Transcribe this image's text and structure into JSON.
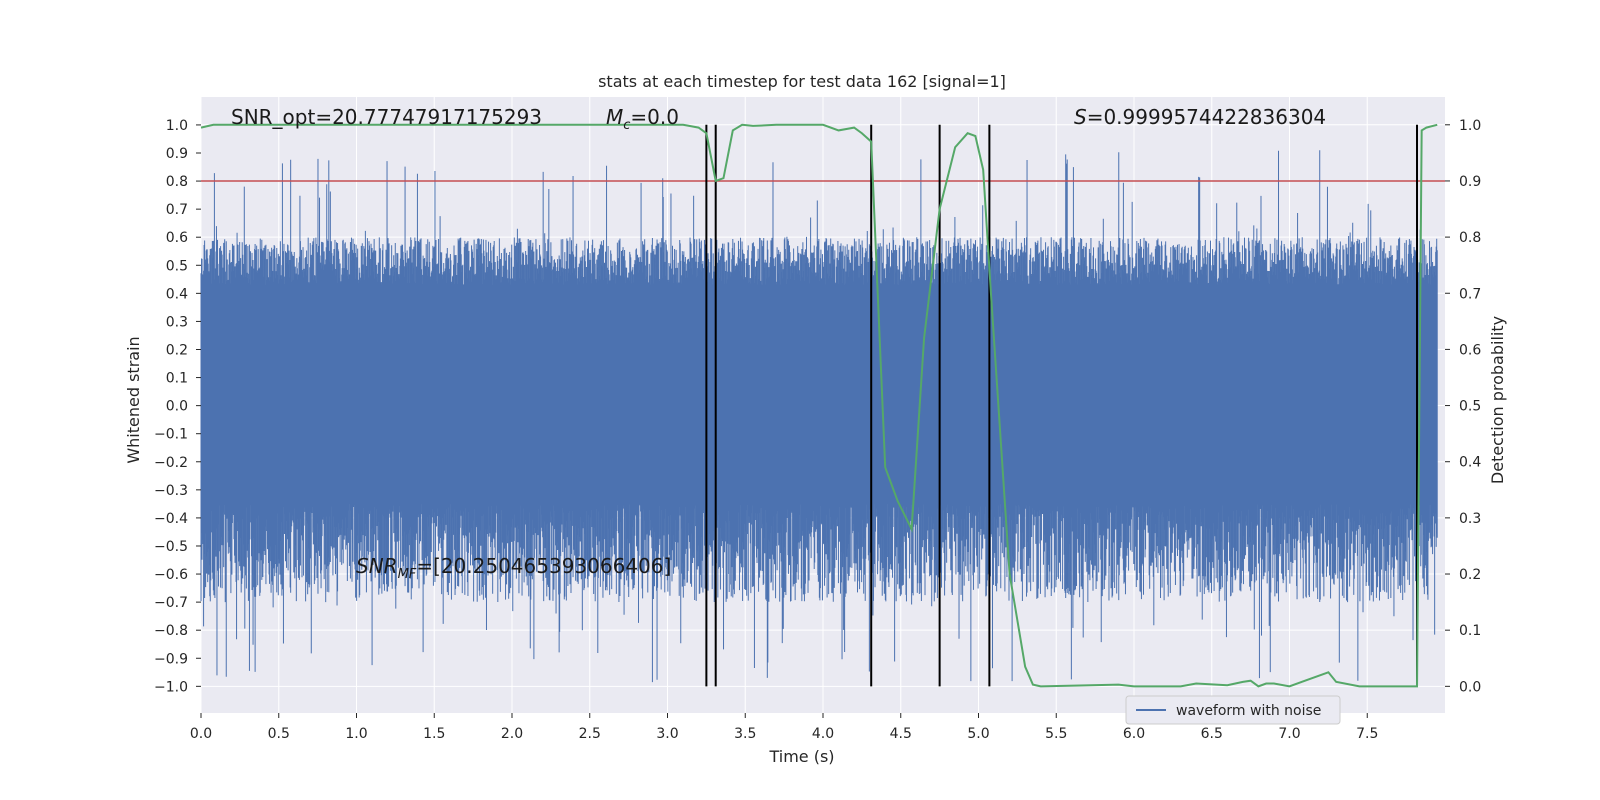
{
  "chart_data": {
    "type": "line",
    "title": "stats at each timestep for test data 162 [signal=1]",
    "xlabel": "Time (s)",
    "ylabel": "Whitened strain",
    "y2label": "Detection probability",
    "xlim": [
      0.0,
      8.0
    ],
    "ylim": [
      -1.095,
      1.0995
    ],
    "y2lim": [
      -0.0475,
      1.0495
    ],
    "x_ticks": [
      0.0,
      0.5,
      1.0,
      1.5,
      2.0,
      2.5,
      3.0,
      3.5,
      4.0,
      4.5,
      5.0,
      5.5,
      6.0,
      6.5,
      7.0,
      7.5
    ],
    "x_tick_labels": [
      "0.0",
      "0.5",
      "1.0",
      "1.5",
      "2.0",
      "2.5",
      "3.0",
      "3.5",
      "4.0",
      "4.5",
      "5.0",
      "5.5",
      "6.0",
      "6.5",
      "7.0",
      "7.5"
    ],
    "y_ticks": [
      1.0,
      0.9,
      0.8,
      0.7,
      0.6,
      0.5,
      0.4,
      0.3,
      0.2,
      0.1,
      0.0,
      -0.1,
      -0.2,
      -0.3,
      -0.4,
      -0.5,
      -0.6,
      -0.7,
      -0.8,
      -0.9,
      -1.0
    ],
    "y_tick_labels": [
      "1.0",
      "0.9",
      "0.8",
      "0.7",
      "0.6",
      "0.5",
      "0.4",
      "0.3",
      "0.2",
      "0.1",
      "0.0",
      "−0.1",
      "−0.2",
      "−0.3",
      "−0.4",
      "−0.5",
      "−0.6",
      "−0.7",
      "−0.8",
      "−0.9",
      "−1.0"
    ],
    "y2_ticks": [
      1.0,
      0.9,
      0.8,
      0.7,
      0.6,
      0.5,
      0.4,
      0.3,
      0.2,
      0.1,
      0.0
    ],
    "y2_tick_labels": [
      "1.0",
      "0.9",
      "0.8",
      "0.7",
      "0.6",
      "0.5",
      "0.4",
      "0.3",
      "0.2",
      "0.1",
      "0.0"
    ],
    "grid": true,
    "legend": {
      "placement": "lower-right",
      "entries": [
        "waveform with noise"
      ]
    },
    "annotations": {
      "snr_opt": "SNR_opt=20.77747917175293",
      "mc_symbol": "M",
      "mc_sub": "c",
      "mc_value": "=0.0",
      "s_symbol": "S",
      "s_value": "=0.9999574422836304",
      "snr_mf_symbol": "SNR",
      "snr_mf_sub": "MF",
      "snr_mf_value": "=[20.250465393066406]"
    },
    "threshold_line": {
      "y2": 0.9,
      "color": "#c44e52"
    },
    "vertical_lines": [
      3.25,
      3.31,
      4.31,
      4.75,
      5.07,
      7.82
    ],
    "strain_envelope": {
      "typical_peak": 0.55,
      "max_peak": 0.91,
      "min_trough": -0.99,
      "core_band": [
        -0.3,
        0.38
      ]
    },
    "series": [
      {
        "name": "waveform with noise",
        "color": "#4c72b0"
      },
      {
        "color": "#55a868",
        "x": [
          0.0,
          0.08,
          3.0,
          3.1,
          3.2,
          3.25,
          3.31,
          3.36,
          3.42,
          3.48,
          3.55,
          3.7,
          4.0,
          4.1,
          4.2,
          4.25,
          4.31,
          4.4,
          4.48,
          4.57,
          4.65,
          4.75,
          4.85,
          4.93,
          4.98,
          5.03,
          5.08,
          5.2,
          5.3,
          5.35,
          5.4,
          5.9,
          6.0,
          6.3,
          6.4,
          6.6,
          6.7,
          6.75,
          6.8,
          6.85,
          6.9,
          7.0,
          7.1,
          7.25,
          7.3,
          7.45,
          7.82,
          7.85,
          7.88,
          7.95
        ],
        "y": [
          0.995,
          1.0,
          1.0,
          1.0,
          0.995,
          0.985,
          0.9,
          0.905,
          0.99,
          1.0,
          0.998,
          1.0,
          1.0,
          0.99,
          0.995,
          0.985,
          0.97,
          0.39,
          0.33,
          0.28,
          0.62,
          0.85,
          0.96,
          0.985,
          0.98,
          0.92,
          0.7,
          0.2,
          0.035,
          0.003,
          0.0,
          0.003,
          0.0,
          0.0,
          0.005,
          0.002,
          0.008,
          0.01,
          0.0,
          0.005,
          0.005,
          0.0,
          0.01,
          0.025,
          0.008,
          0.0,
          0.0,
          0.99,
          0.995,
          1.0
        ]
      }
    ]
  }
}
